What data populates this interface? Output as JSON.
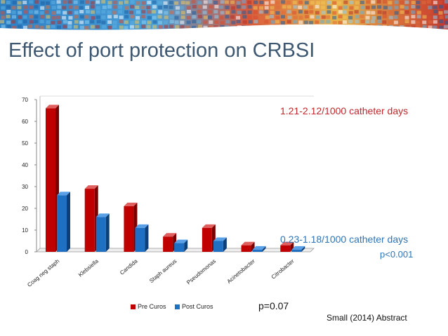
{
  "slide": {
    "title": "Effect of port protection on CRBSI",
    "annotation_pre": "1.21-2.12/1000 catheter days",
    "annotation_post": "0.23-1.18/1000 catheter days",
    "annotation_p_post": "p<0.001",
    "p_value": "p=0.07",
    "source": "Small (2014) Abstract"
  },
  "colors": {
    "pre": "#c00000",
    "post": "#1f6fc2",
    "title": "#3e5872",
    "annotation_red": "#c0262b",
    "annotation_blue": "#2e74b5"
  },
  "chart_data": {
    "type": "bar",
    "categories": [
      "Coag neg staph",
      "Klebsiella",
      "Candida",
      "Staph aureus",
      "Pseudomonas",
      "Acinetobacter",
      "Citrobacter"
    ],
    "series": [
      {
        "name": "Pre Curos",
        "values": [
          66,
          29,
          21,
          7,
          11,
          3,
          3
        ]
      },
      {
        "name": "Post Curos",
        "values": [
          26,
          16,
          11,
          4,
          5,
          1,
          1
        ]
      }
    ],
    "ylim": [
      0,
      70
    ],
    "yticks": [
      0,
      10,
      20,
      30,
      40,
      50,
      60,
      70
    ],
    "grid": false,
    "legend_position": "bottom"
  }
}
